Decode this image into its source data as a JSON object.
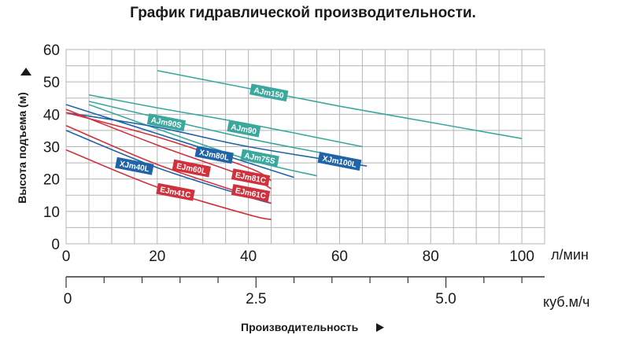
{
  "chart_data": {
    "type": "line",
    "title": "График гидравлической производительности.",
    "ylabel": "Высота подъема (м)",
    "xlabel": "Производительность",
    "x_unit": "л/мин",
    "x2_unit": "куб.м/ч",
    "xlim": [
      0,
      105
    ],
    "ylim": [
      0,
      60
    ],
    "x_ticks": [
      0,
      20,
      40,
      60,
      80,
      100
    ],
    "y_ticks": [
      0,
      10,
      20,
      30,
      40,
      50,
      60
    ],
    "x2_ticks": [
      "0",
      "2.5",
      "5.0"
    ],
    "x2_tick_values_lpm": [
      0,
      41.67,
      83.33
    ],
    "grid": true,
    "colors": {
      "teal": "#3aa89c",
      "blue": "#1f63a8",
      "red": "#d1313c",
      "grid": "#b5b5b5"
    },
    "series": [
      {
        "name": "AJm150",
        "color": "teal",
        "x": [
          20,
          40,
          60,
          80,
          100
        ],
        "y": [
          53.5,
          48,
          42.5,
          37.5,
          32.5
        ]
      },
      {
        "name": "AJm90",
        "color": "teal",
        "x": [
          5,
          20,
          40,
          65
        ],
        "y": [
          46,
          42,
          37,
          30
        ]
      },
      {
        "name": "AJm90S",
        "color": "teal",
        "x": [
          5,
          20,
          40,
          60
        ],
        "y": [
          44,
          39,
          32.5,
          27
        ]
      },
      {
        "name": "AJm75S",
        "color": "teal",
        "x": [
          5,
          20,
          40,
          55
        ],
        "y": [
          43,
          35.5,
          26,
          21
        ]
      },
      {
        "name": "XJm100L",
        "color": "blue",
        "x": [
          0,
          20,
          40,
          66
        ],
        "y": [
          40.5,
          36,
          30,
          24
        ]
      },
      {
        "name": "XJm80L",
        "color": "blue",
        "x": [
          0,
          20,
          40,
          50
        ],
        "y": [
          43,
          34,
          25,
          20.5
        ]
      },
      {
        "name": "XJm40L",
        "color": "blue",
        "x": [
          0,
          20,
          40,
          45
        ],
        "y": [
          35,
          23.5,
          14.5,
          12.5
        ]
      },
      {
        "name": "EJm81C",
        "color": "red",
        "x": [
          0,
          20,
          40,
          45
        ],
        "y": [
          40.5,
          33,
          23.5,
          19.5
        ]
      },
      {
        "name": "EJm61C",
        "color": "red",
        "x": [
          0,
          20,
          40,
          45
        ],
        "y": [
          36.5,
          24.5,
          15,
          12.5
        ]
      },
      {
        "name": "EJm60L",
        "color": "red",
        "x": [
          0,
          20,
          40,
          45
        ],
        "y": [
          41.5,
          30.5,
          20.5,
          17
        ]
      },
      {
        "name": "EJm41C",
        "color": "red",
        "x": [
          0,
          20,
          40,
          45
        ],
        "y": [
          29,
          17.5,
          9,
          7.5
        ]
      }
    ],
    "labels": [
      {
        "series": "AJm150",
        "x": 44.5,
        "y": 46.7
      },
      {
        "series": "AJm90",
        "x": 39,
        "y": 35.5
      },
      {
        "series": "AJm90S",
        "x": 22,
        "y": 37.5
      },
      {
        "series": "AJm75S",
        "x": 42.5,
        "y": 26.5
      },
      {
        "series": "XJm100L",
        "x": 60,
        "y": 25.5
      },
      {
        "series": "XJm80L",
        "x": 32.5,
        "y": 27.5
      },
      {
        "series": "XJm40L",
        "x": 15,
        "y": 24
      },
      {
        "series": "EJm81C",
        "x": 40.5,
        "y": 20.5
      },
      {
        "series": "EJm61C",
        "x": 40.5,
        "y": 15.7
      },
      {
        "series": "EJm60L",
        "x": 27.5,
        "y": 23.3
      },
      {
        "series": "EJm41C",
        "x": 24,
        "y": 16
      }
    ]
  }
}
